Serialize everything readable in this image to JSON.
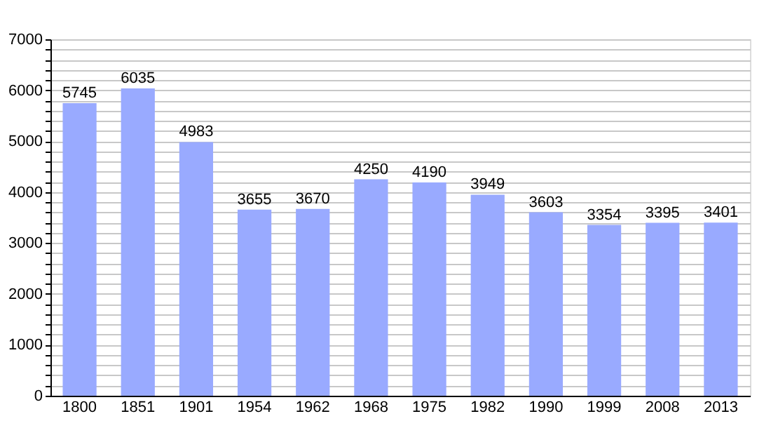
{
  "chart_data": {
    "type": "bar",
    "categories": [
      "1800",
      "1851",
      "1901",
      "1954",
      "1962",
      "1968",
      "1975",
      "1982",
      "1990",
      "1999",
      "2008",
      "2013"
    ],
    "values": [
      5745,
      6035,
      4983,
      3655,
      3670,
      4250,
      4190,
      3949,
      3603,
      3354,
      3395,
      3401
    ],
    "color": "#99aaff",
    "ylim": [
      0,
      7000
    ],
    "yticks": [
      0,
      {
        "value": 200,
        "label": null
      },
      {
        "value": 400,
        "label": null
      },
      {
        "value": 600,
        "label": null
      },
      {
        "value": 800,
        "label": null
      },
      1000,
      {
        "value": 1200,
        "label": null
      },
      {
        "value": 1400,
        "label": null
      },
      {
        "value": 1600,
        "label": null
      },
      {
        "value": 1800,
        "label": null
      },
      2000,
      {
        "value": 2200,
        "label": null
      },
      {
        "value": 2400,
        "label": null
      },
      {
        "value": 2600,
        "label": null
      },
      {
        "value": 2800,
        "label": null
      },
      3000,
      {
        "value": 3200,
        "label": null
      },
      {
        "value": 3400,
        "label": null
      },
      {
        "value": 3600,
        "label": null
      },
      {
        "value": 3800,
        "label": null
      },
      4000,
      {
        "value": 4200,
        "label": null
      },
      {
        "value": 4400,
        "label": null
      },
      {
        "value": 4600,
        "label": null
      },
      {
        "value": 4800,
        "label": null
      },
      5000,
      {
        "value": 5200,
        "label": null
      },
      {
        "value": 5400,
        "label": null
      },
      {
        "value": 5600,
        "label": null
      },
      {
        "value": 5800,
        "label": null
      },
      6000,
      {
        "value": 6200,
        "label": null
      },
      {
        "value": 6400,
        "label": null
      },
      {
        "value": 6600,
        "label": null
      },
      {
        "value": 6800,
        "label": null
      },
      7000
    ],
    "grid": true,
    "data_labels": true
  }
}
